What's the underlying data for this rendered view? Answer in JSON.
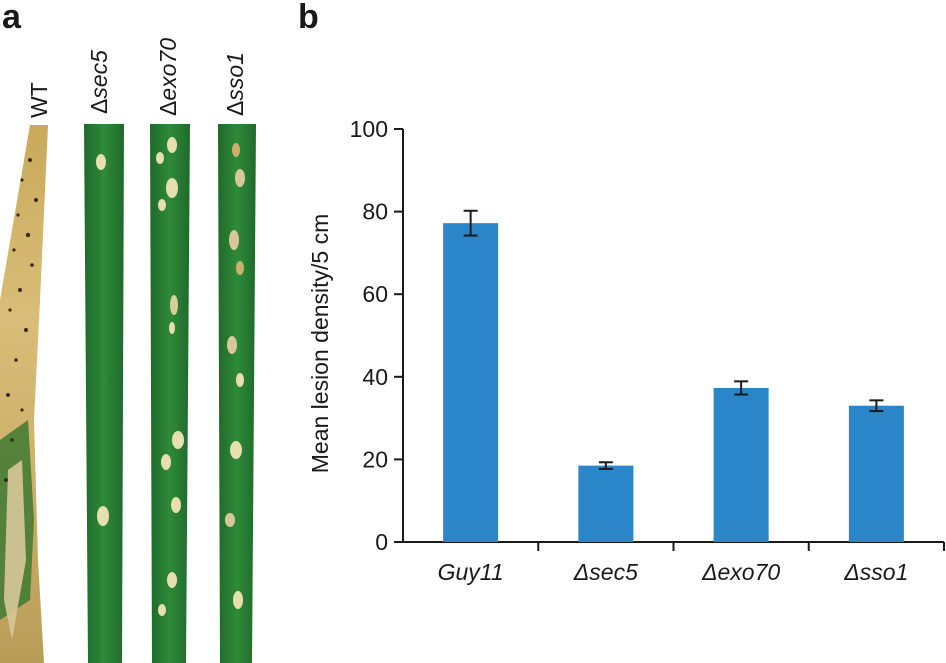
{
  "panel_a": {
    "letter": "a",
    "leaves": [
      {
        "prefix": "",
        "name": "WT",
        "italic": false
      },
      {
        "prefix": "Δ",
        "name": "sec5",
        "italic": true
      },
      {
        "prefix": "Δ",
        "name": "exo70",
        "italic": true
      },
      {
        "prefix": "Δ",
        "name": "sso1",
        "italic": true
      }
    ]
  },
  "panel_b": {
    "letter": "b"
  },
  "chart_data": {
    "type": "bar",
    "categories": [
      "Guy11",
      "Δsec5",
      "Δexo70",
      "Δsso1"
    ],
    "values": [
      77.2,
      18.5,
      37.3,
      33.0
    ],
    "errors": [
      3.0,
      0.8,
      1.6,
      1.3
    ],
    "ylabel": "Mean lesion density/5 cm",
    "xlabel": "",
    "ylim": [
      0,
      100
    ],
    "yticks": [
      0,
      20,
      40,
      60,
      80,
      100
    ],
    "grid": false,
    "bar_color": "#2a86c8"
  },
  "colors": {
    "leaf_green": "#2f7f35",
    "leaf_dark": "#1e5e25",
    "lesion": "#e8dfb0",
    "senescent": "#cdb06a"
  }
}
